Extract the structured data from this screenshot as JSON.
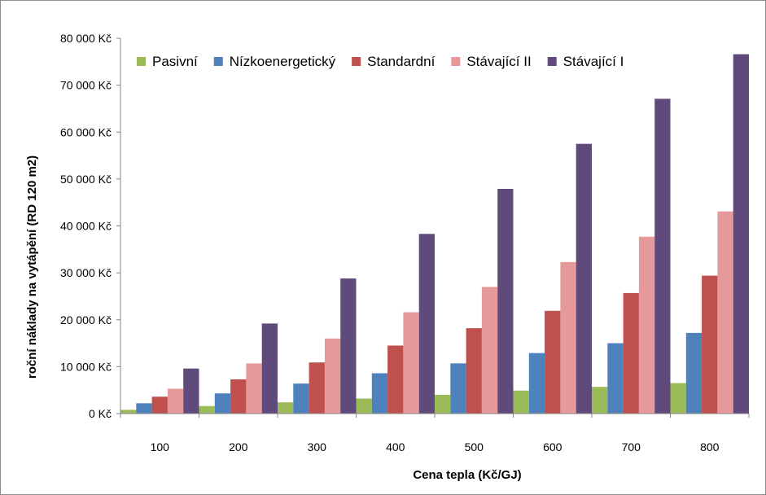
{
  "chart_data": {
    "type": "bar",
    "categories": [
      "100",
      "200",
      "300",
      "400",
      "500",
      "600",
      "700",
      "800"
    ],
    "series": [
      {
        "name": "Pasivní",
        "color": "#9bbb59",
        "values": [
          800,
          1600,
          2400,
          3200,
          4000,
          4900,
          5700,
          6500
        ]
      },
      {
        "name": "Nízkoenergetický",
        "color": "#4f81bd",
        "values": [
          2200,
          4300,
          6400,
          8600,
          10700,
          12900,
          15000,
          17200
        ]
      },
      {
        "name": "Standardní",
        "color": "#c0504d",
        "values": [
          3600,
          7300,
          10900,
          14500,
          18200,
          21900,
          25700,
          29400
        ]
      },
      {
        "name": "Stávající II",
        "color": "#e6999a",
        "values": [
          5300,
          10700,
          16000,
          21600,
          27000,
          32300,
          37700,
          43100
        ]
      },
      {
        "name": "Stávající I",
        "color": "#604a7b",
        "values": [
          9600,
          19200,
          28800,
          38300,
          47900,
          57500,
          67100,
          76600
        ]
      }
    ],
    "ylim": [
      0,
      80000
    ],
    "yticks": [
      0,
      10000,
      20000,
      30000,
      40000,
      50000,
      60000,
      70000,
      80000
    ],
    "ytick_labels": [
      "0 Kč",
      "10 000 Kč",
      "20 000 Kč",
      "30 000 Kč",
      "40 000 Kč",
      "50 000 Kč",
      "60 000 Kč",
      "70 000 Kč",
      "80 000 Kč"
    ],
    "xlabel": "Cena tepla (Kč/GJ)",
    "ylabel": "roční náklady na vytápění  (RD 120 m2)",
    "grid": false,
    "legend_position": "top"
  }
}
